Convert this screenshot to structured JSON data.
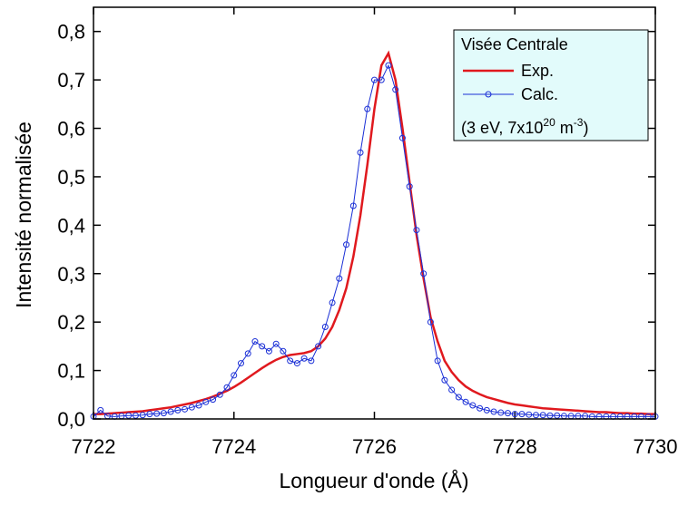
{
  "chart_data": {
    "type": "line",
    "x_label": "Longueur d'onde (Å)",
    "y_label": "Intensité normalisée",
    "legend_title": "Visée Centrale",
    "legend_note": [
      "(3 eV, 7x10",
      "20",
      " m",
      "-3",
      ")"
    ],
    "xlim": [
      7722,
      7730
    ],
    "xticks": [
      7722,
      7724,
      7726,
      7728,
      7730
    ],
    "ylim": [
      0,
      0.85
    ],
    "yticks": [
      {
        "value": 0,
        "label": "0,0"
      },
      {
        "value": 0.1,
        "label": "0,1"
      },
      {
        "value": 0.2,
        "label": "0,2"
      },
      {
        "value": 0.3,
        "label": "0,3"
      },
      {
        "value": 0.4,
        "label": "0,4"
      },
      {
        "value": 0.5,
        "label": "0,5"
      },
      {
        "value": 0.6,
        "label": "0,6"
      },
      {
        "value": 0.7,
        "label": "0,7"
      },
      {
        "value": 0.8,
        "label": "0,8"
      }
    ],
    "x": [
      7722.0,
      7722.1,
      7722.2,
      7722.3,
      7722.4,
      7722.5,
      7722.6,
      7722.7,
      7722.8,
      7722.9,
      7723.0,
      7723.1,
      7723.2,
      7723.3,
      7723.4,
      7723.5,
      7723.6,
      7723.7,
      7723.8,
      7723.9,
      7724.0,
      7724.1,
      7724.2,
      7724.3,
      7724.4,
      7724.5,
      7724.6,
      7724.7,
      7724.8,
      7724.9,
      7725.0,
      7725.1,
      7725.2,
      7725.3,
      7725.4,
      7725.5,
      7725.6,
      7725.7,
      7725.8,
      7725.9,
      7726.0,
      7726.1,
      7726.2,
      7726.3,
      7726.4,
      7726.5,
      7726.6,
      7726.7,
      7726.8,
      7726.9,
      7727.0,
      7727.1,
      7727.2,
      7727.3,
      7727.4,
      7727.5,
      7727.6,
      7727.7,
      7727.8,
      7727.9,
      7728.0,
      7728.1,
      7728.2,
      7728.3,
      7728.4,
      7728.5,
      7728.6,
      7728.7,
      7728.8,
      7728.9,
      7729.0,
      7729.1,
      7729.2,
      7729.3,
      7729.4,
      7729.5,
      7729.6,
      7729.7,
      7729.8,
      7729.9,
      7730.0
    ],
    "series": [
      {
        "name": "Exp.",
        "color": "#e0191e",
        "marker": false,
        "values": [
          0.01,
          0.01,
          0.011,
          0.012,
          0.013,
          0.014,
          0.015,
          0.016,
          0.018,
          0.02,
          0.022,
          0.024,
          0.027,
          0.03,
          0.033,
          0.037,
          0.041,
          0.046,
          0.052,
          0.058,
          0.066,
          0.075,
          0.085,
          0.095,
          0.105,
          0.114,
          0.122,
          0.128,
          0.132,
          0.134,
          0.136,
          0.14,
          0.15,
          0.166,
          0.19,
          0.225,
          0.27,
          0.335,
          0.42,
          0.525,
          0.64,
          0.73,
          0.755,
          0.7,
          0.6,
          0.49,
          0.38,
          0.29,
          0.21,
          0.16,
          0.12,
          0.097,
          0.08,
          0.067,
          0.058,
          0.051,
          0.045,
          0.041,
          0.037,
          0.033,
          0.03,
          0.028,
          0.026,
          0.024,
          0.022,
          0.021,
          0.02,
          0.019,
          0.018,
          0.017,
          0.016,
          0.015,
          0.014,
          0.014,
          0.013,
          0.012,
          0.012,
          0.011,
          0.011,
          0.01,
          0.01
        ]
      },
      {
        "name": "Calc.",
        "color": "#1a2fd6",
        "marker": true,
        "values": [
          0.005,
          0.018,
          0.006,
          0.005,
          0.006,
          0.007,
          0.007,
          0.008,
          0.01,
          0.011,
          0.012,
          0.015,
          0.018,
          0.02,
          0.024,
          0.028,
          0.035,
          0.04,
          0.05,
          0.065,
          0.09,
          0.115,
          0.135,
          0.16,
          0.15,
          0.14,
          0.155,
          0.14,
          0.12,
          0.115,
          0.125,
          0.12,
          0.15,
          0.19,
          0.24,
          0.29,
          0.36,
          0.44,
          0.55,
          0.64,
          0.7,
          0.7,
          0.73,
          0.68,
          0.58,
          0.48,
          0.39,
          0.3,
          0.2,
          0.12,
          0.08,
          0.06,
          0.045,
          0.035,
          0.028,
          0.022,
          0.018,
          0.015,
          0.013,
          0.012,
          0.01,
          0.01,
          0.009,
          0.008,
          0.008,
          0.007,
          0.007,
          0.006,
          0.006,
          0.006,
          0.006,
          0.005,
          0.005,
          0.005,
          0.005,
          0.005,
          0.005,
          0.005,
          0.005,
          0.005,
          0.005
        ]
      }
    ]
  }
}
